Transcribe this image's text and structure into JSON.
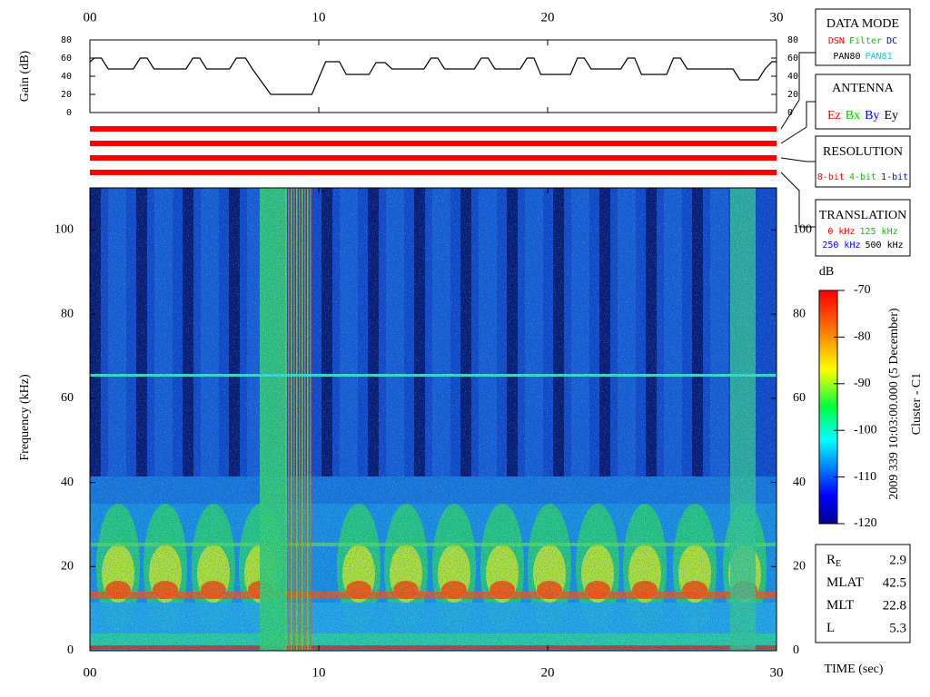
{
  "chart_data": [
    {
      "type": "line",
      "y_label": "Gain (dB)",
      "x": [
        0,
        0.2,
        0.5,
        0.8,
        1.9,
        2.2,
        2.5,
        2.8,
        4.2,
        4.5,
        4.8,
        5.1,
        6.1,
        6.4,
        6.8,
        7.1,
        7.9,
        9.7,
        10.3,
        10.9,
        11.2,
        12.2,
        12.5,
        12.9,
        13.2,
        14.6,
        14.9,
        15.2,
        15.5,
        16.8,
        17.1,
        17.4,
        17.7,
        18.8,
        19.1,
        19.4,
        19.7,
        21.0,
        21.3,
        21.6,
        21.9,
        23.2,
        23.5,
        23.8,
        24.1,
        25.2,
        25.5,
        25.8,
        26.1,
        28.1,
        28.4,
        29.2,
        29.5,
        29.8,
        30
      ],
      "series": [
        {
          "color": "#000000",
          "values": [
            56,
            60,
            60,
            48,
            48,
            60,
            60,
            48,
            48,
            60,
            60,
            48,
            48,
            60,
            60,
            48,
            20,
            20,
            56,
            56,
            42,
            42,
            55,
            55,
            48,
            48,
            60,
            60,
            48,
            48,
            60,
            60,
            48,
            48,
            60,
            60,
            42,
            42,
            60,
            60,
            48,
            48,
            60,
            60,
            42,
            42,
            60,
            60,
            48,
            48,
            36,
            36,
            48,
            56,
            56
          ]
        }
      ],
      "xlim": [
        0,
        30
      ],
      "xticks": [
        {
          "value": 0,
          "label": "00"
        },
        10,
        20,
        30
      ],
      "ylim": [
        0,
        80
      ],
      "yticks": [
        0,
        20,
        40,
        60,
        80
      ]
    },
    {
      "type": "spectrogram",
      "y_label": "Frequency (kHz)",
      "x_label": "TIME (sec)",
      "xlim": [
        0,
        30
      ],
      "xticks": [
        {
          "value": 0,
          "label": "00"
        },
        10,
        20,
        30
      ],
      "ylim": [
        0,
        110
      ],
      "yticks": [
        0,
        20,
        40,
        60,
        80,
        100
      ],
      "colorbar": {
        "label": "dB",
        "lim": [
          -120,
          -70
        ],
        "ticks": [
          -70,
          -80,
          -90,
          -100,
          -110,
          -120
        ]
      },
      "date_label": "2009 339 10:03:00.000 (5 December)",
      "spacecraft_label": "Cluster - C1"
    }
  ],
  "data_mode": {
    "title": "DATA MODE",
    "rows": [
      [
        {
          "text": "DSN",
          "color": "#ff0000"
        },
        {
          "text": "Filter",
          "color": "#00cc00"
        },
        {
          "text": "DC",
          "color": "#0000ff"
        }
      ],
      [
        {
          "text": "PAN80",
          "color": "#000000"
        },
        {
          "text": "PAN81",
          "color": "#00d8d8"
        }
      ]
    ]
  },
  "antenna": {
    "title": "ANTENNA",
    "rows": [
      [
        {
          "text": "Ez",
          "color": "#ff0000"
        },
        {
          "text": "Bx",
          "color": "#00cc00"
        },
        {
          "text": "By",
          "color": "#0000ff"
        },
        {
          "text": "Ey",
          "color": "#000000"
        }
      ]
    ]
  },
  "resolution": {
    "title": "RESOLUTION",
    "rows": [
      [
        {
          "text": "8-bit",
          "color": "#ff0000"
        },
        {
          "text": "4-bit",
          "color": "#00cc00"
        },
        {
          "text": "1-bit",
          "color": "#0000ff"
        }
      ]
    ]
  },
  "translation": {
    "title": "TRANSLATION",
    "rows": [
      [
        {
          "text": "0 kHz",
          "color": "#ff0000"
        },
        {
          "text": "125 kHz",
          "color": "#00cc00"
        }
      ],
      [
        {
          "text": "250 kHz",
          "color": "#0000ff"
        },
        {
          "text": "500 kHz",
          "color": "#000000"
        }
      ]
    ]
  },
  "ephemeris": [
    {
      "label": "R",
      "subscript": "E",
      "value": 2.9
    },
    {
      "label": "MLAT",
      "value": 42.5
    },
    {
      "label": "MLT",
      "value": 22.8
    },
    {
      "label": "L",
      "value": 5.3
    }
  ]
}
